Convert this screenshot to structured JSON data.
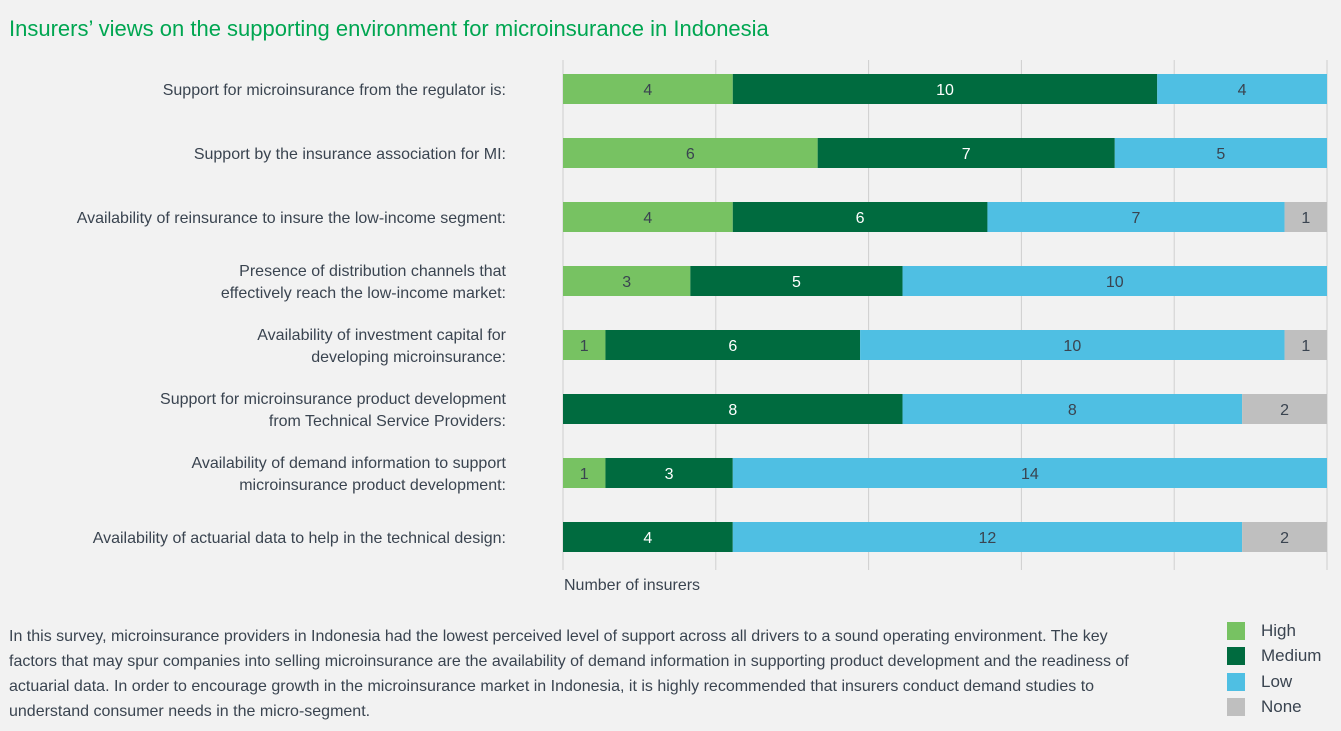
{
  "chart_data": {
    "type": "bar",
    "orientation": "horizontal-stacked",
    "title": "Insurers’ views on the supporting environment for microinsurance in Indonesia",
    "xlabel": "Number of insurers",
    "categories": [
      [
        "Support for microinsurance from the regulator is:"
      ],
      [
        "Support by the insurance association for MI:"
      ],
      [
        "Availability of reinsurance to insure the low-income segment:"
      ],
      [
        "Presence of distribution channels that",
        "effectively reach the low-income market:"
      ],
      [
        "Availability of investment capital for",
        "developing microinsurance:"
      ],
      [
        "Support for microinsurance product development",
        "from Technical Service Providers:"
      ],
      [
        "Availability of demand information to support",
        "microinsurance product development:"
      ],
      [
        "Availability of actuarial data to help in the technical design:"
      ]
    ],
    "series": [
      {
        "name": "High",
        "color": "#77c262",
        "values": [
          4,
          6,
          4,
          3,
          1,
          0,
          1,
          0
        ]
      },
      {
        "name": "Medium",
        "color": "#006b3f",
        "values": [
          10,
          7,
          6,
          5,
          6,
          8,
          3,
          4
        ]
      },
      {
        "name": "Low",
        "color": "#4fbfe3",
        "values": [
          4,
          5,
          7,
          10,
          10,
          8,
          14,
          12
        ]
      },
      {
        "name": "None",
        "color": "#bfbfbf",
        "values": [
          0,
          0,
          1,
          0,
          1,
          2,
          0,
          2
        ]
      }
    ],
    "xlim": [
      0,
      18
    ],
    "grid": true,
    "legend": "bottom-right"
  },
  "note": "In this survey, microinsurance providers in Indonesia had the lowest perceived level of support across all drivers to a sound operating environment. The key factors that may spur companies into selling microinsurance are the availability of demand information in supporting product development and the readiness of actuarial data. In order to encourage growth in the microinsurance market in Indonesia, it is  highly recommended that insurers conduct demand studies to understand consumer needs in the micro-segment."
}
